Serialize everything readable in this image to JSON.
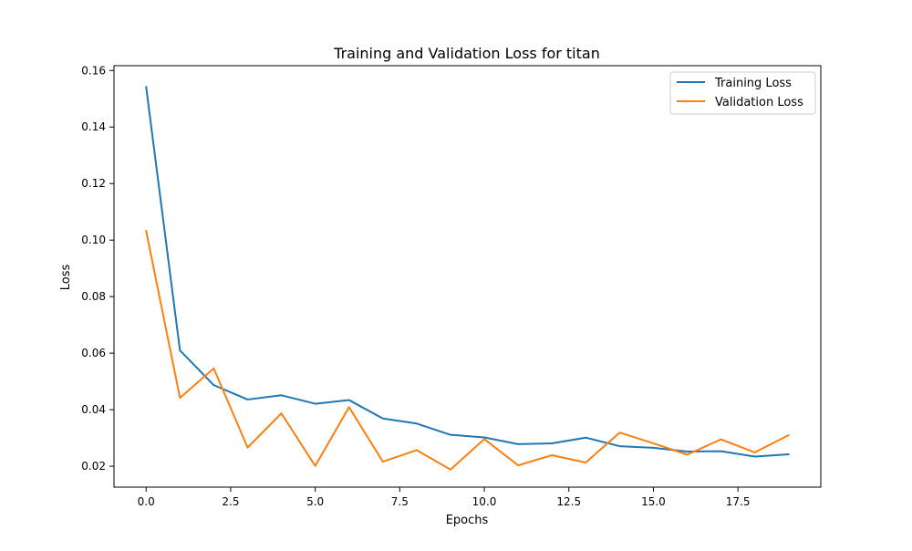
{
  "chart_data": {
    "type": "line",
    "title": "Training and Validation Loss for titan",
    "xlabel": "Epochs",
    "ylabel": "Loss",
    "xlim": [
      -0.95,
      19.95
    ],
    "ylim": [
      0.0126,
      0.1617
    ],
    "xticks": [
      0,
      2.5,
      5,
      7.5,
      10,
      12.5,
      15,
      17.5
    ],
    "xtick_labels": [
      "0.0",
      "2.5",
      "5.0",
      "7.5",
      "10.0",
      "12.5",
      "15.0",
      "17.5"
    ],
    "yticks": [
      0.02,
      0.04,
      0.06,
      0.08,
      0.1,
      0.12,
      0.14,
      0.16
    ],
    "ytick_labels": [
      "0.02",
      "0.04",
      "0.06",
      "0.08",
      "0.10",
      "0.12",
      "0.14",
      "0.16"
    ],
    "grid": false,
    "legend_position": "top-right",
    "x": [
      0,
      1,
      2,
      3,
      4,
      5,
      6,
      7,
      8,
      9,
      10,
      11,
      12,
      13,
      14,
      15,
      16,
      17,
      18,
      19
    ],
    "series": [
      {
        "name": "Training Loss",
        "color": "#1f77b4",
        "values": [
          0.1542,
          0.061,
          0.0487,
          0.0436,
          0.0451,
          0.0421,
          0.0434,
          0.0369,
          0.0351,
          0.0311,
          0.0302,
          0.0278,
          0.0281,
          0.0301,
          0.0271,
          0.0265,
          0.0252,
          0.0253,
          0.0234,
          0.0242
        ]
      },
      {
        "name": "Validation Loss",
        "color": "#ff7f0e",
        "values": [
          0.1033,
          0.0442,
          0.0546,
          0.0266,
          0.0387,
          0.0201,
          0.0409,
          0.0216,
          0.0257,
          0.0188,
          0.0296,
          0.0203,
          0.0239,
          0.0213,
          0.0319,
          0.0281,
          0.0241,
          0.0295,
          0.0249,
          0.031
        ]
      }
    ]
  }
}
